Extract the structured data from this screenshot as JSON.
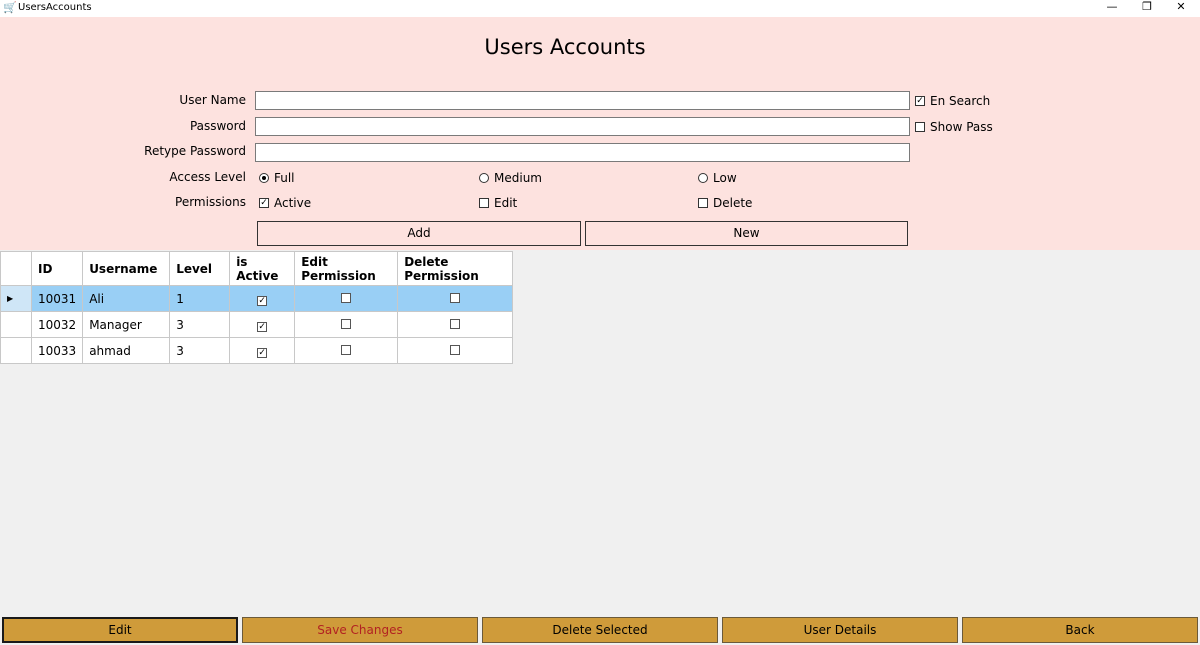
{
  "window": {
    "title": "UsersAccounts",
    "app_icon": "cart-icon",
    "controls": [
      "minimize",
      "restore",
      "close"
    ]
  },
  "form": {
    "title": "Users Accounts",
    "username_label": "User Name",
    "username_value": "",
    "password_label": "Password",
    "password_value": "",
    "retype_label": "Retype Password",
    "retype_value": "",
    "en_search_label": "En Search",
    "en_search_checked": true,
    "show_pass_label": "Show Pass",
    "show_pass_checked": false,
    "access_level_label": "Access Level",
    "access_levels": [
      {
        "label": "Full",
        "selected": true
      },
      {
        "label": "Medium",
        "selected": false
      },
      {
        "label": "Low",
        "selected": false
      }
    ],
    "permissions_label": "Permissions",
    "permissions": [
      {
        "label": "Active",
        "checked": true
      },
      {
        "label": "Edit",
        "checked": false
      },
      {
        "label": "Delete",
        "checked": false
      }
    ],
    "add_label": "Add",
    "new_label": "New"
  },
  "grid": {
    "columns": [
      "ID",
      "Username",
      "Level",
      "is Active",
      "Edit Permission",
      "Delete Permission"
    ],
    "rows": [
      {
        "id": "10031",
        "username": "Ali",
        "level": "1",
        "active": true,
        "edit": false,
        "delete": false,
        "selected": true
      },
      {
        "id": "10032",
        "username": "Manager",
        "level": "3",
        "active": true,
        "edit": false,
        "delete": false
      },
      {
        "id": "10033",
        "username": "ahmad",
        "level": "3",
        "active": true,
        "edit": false,
        "delete": false
      }
    ]
  },
  "footer": {
    "edit": "Edit",
    "save": "Save Changes",
    "delete": "Delete Selected",
    "details": "User Details",
    "back": "Back"
  },
  "colors": {
    "panel": "#fde2df",
    "button": "#cf9b3a",
    "selected_row": "#99cff5",
    "save_text": "#b22222"
  }
}
